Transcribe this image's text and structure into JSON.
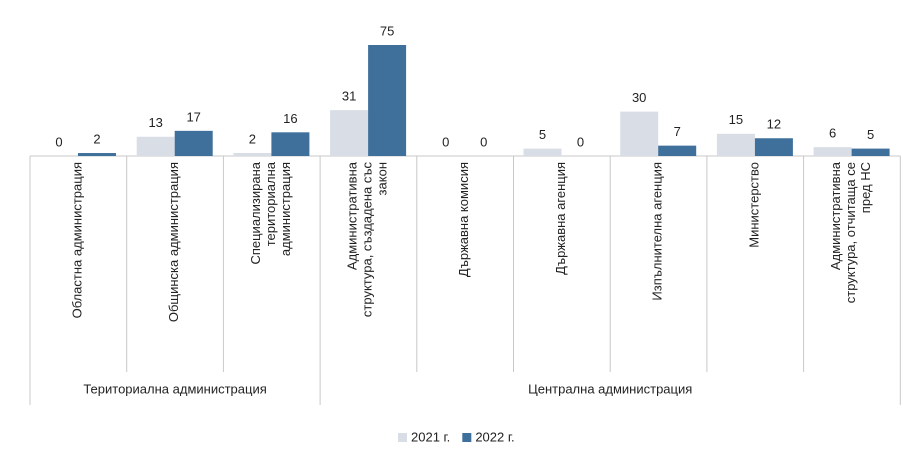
{
  "chart_data": {
    "type": "bar",
    "categories": [
      "Областна администрация",
      "Общинска администрация",
      "Специализирана териториална администрация",
      "Административна структура, създадена със закон",
      "Държавна комисия",
      "Държавна агенция",
      "Изпълнителна агенция",
      "Министерство",
      "Административна структура, отчитаща се пред НС"
    ],
    "groups": [
      {
        "label": "Териториална администрация",
        "span": 3
      },
      {
        "label": "Централна администрация",
        "span": 6
      }
    ],
    "series": [
      {
        "name": "2021 г.",
        "color": "#d9dee6",
        "values": [
          0,
          13,
          2,
          31,
          0,
          5,
          30,
          15,
          6
        ]
      },
      {
        "name": "2022 г.",
        "color": "#3f6f9b",
        "values": [
          2,
          17,
          16,
          75,
          0,
          0,
          7,
          12,
          5
        ]
      }
    ],
    "legend": "bottom"
  }
}
